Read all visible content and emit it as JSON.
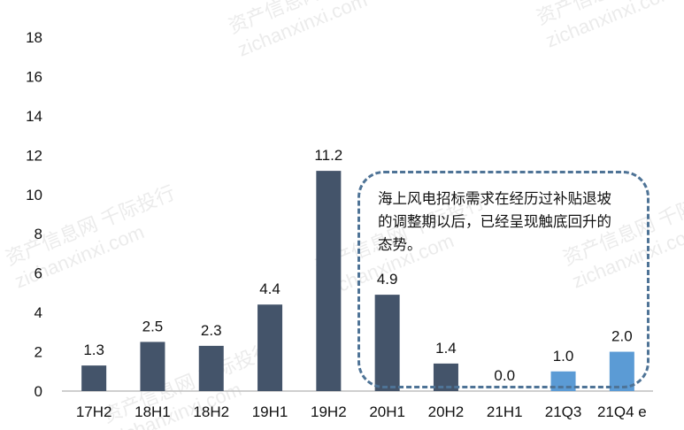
{
  "chart_data": {
    "type": "bar",
    "categories": [
      "17H2",
      "18H1",
      "18H2",
      "19H1",
      "19H2",
      "20H1",
      "20H2",
      "21H1",
      "21Q3",
      "21Q4 e"
    ],
    "values": [
      1.3,
      2.5,
      2.3,
      4.4,
      11.2,
      4.9,
      1.4,
      0.0,
      1.0,
      2.0
    ],
    "data_labels": [
      "1.3",
      "2.5",
      "2.3",
      "4.4",
      "11.2",
      "4.9",
      "1.4",
      "0.0",
      "1.0",
      "2.0"
    ],
    "ylim": [
      0,
      18
    ],
    "yticks": [
      0,
      2,
      4,
      6,
      8,
      10,
      12,
      14,
      16,
      18
    ],
    "title": "",
    "xlabel": "",
    "ylabel": "",
    "grid": false,
    "legend": "none",
    "colors": {
      "dark": "#44546a",
      "light": "#5b9bd5",
      "axis": "#bfbfbf"
    },
    "bar_color_keys": [
      "dark",
      "dark",
      "dark",
      "dark",
      "dark",
      "dark",
      "dark",
      "dark",
      "light",
      "light"
    ]
  },
  "annotation": {
    "text": "海上风电招标需求在经历过补贴退坡的调整期以后，已经呈现触底回升的态势。",
    "border_color": "#4e7396"
  },
  "watermark": {
    "lines": [
      "资产信息网 千际投行",
      "zichanxinxi.com"
    ]
  }
}
